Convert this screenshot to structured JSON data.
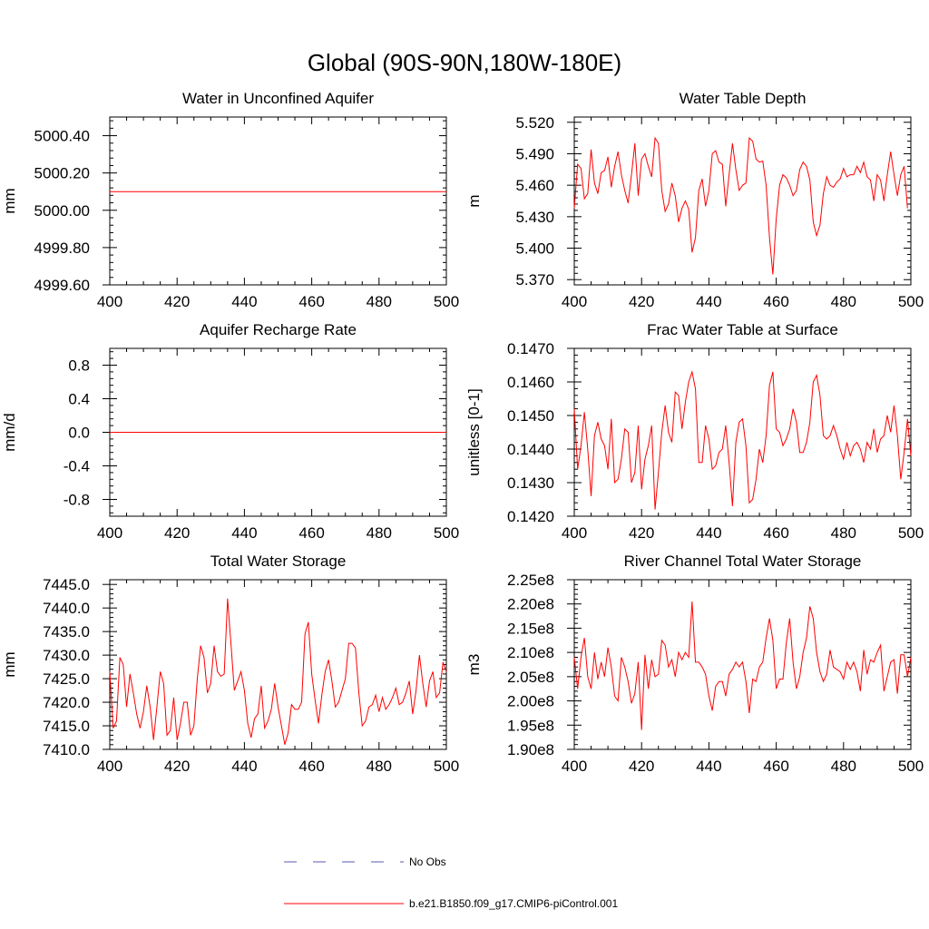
{
  "figure_title": "Global (90S-90N,180W-180E)",
  "legend": [
    {
      "label": "No Obs",
      "color": "#5a5ab0",
      "dash": true
    },
    {
      "label": "b.e21.B1850.f09_g17.CMIP6-piControl.001",
      "color": "#ff0000",
      "dash": false
    }
  ],
  "chart_data": [
    {
      "type": "line",
      "title": "Water in Unconfined Aquifer",
      "xlabel": "",
      "ylabel": "mm",
      "xlim": [
        400,
        500
      ],
      "ylim": [
        4999.6,
        5000.5
      ],
      "xticks": [
        400,
        420,
        440,
        460,
        480,
        500
      ],
      "xtick_labels": [
        "400",
        "420",
        "440",
        "460",
        "480",
        "500"
      ],
      "yticks": [
        4999.6,
        4999.8,
        5000.0,
        5000.2,
        5000.4
      ],
      "ytick_labels": [
        "4999.60",
        "4999.80",
        "5000.00",
        "5000.20",
        "5000.40"
      ],
      "series": [
        {
          "name": "b.e21.B1850.f09_g17.CMIP6-piControl.001",
          "color": "#ff0000",
          "x0": 400,
          "dx": 1,
          "values": [
            5000.1,
            5000.1,
            5000.1,
            5000.1,
            5000.1,
            5000.1,
            5000.1,
            5000.1,
            5000.1,
            5000.1,
            5000.1,
            5000.1,
            5000.1,
            5000.1,
            5000.1,
            5000.1,
            5000.1,
            5000.1,
            5000.1,
            5000.1,
            5000.1,
            5000.1,
            5000.1,
            5000.1,
            5000.1,
            5000.1,
            5000.1,
            5000.1,
            5000.1,
            5000.1,
            5000.1,
            5000.1,
            5000.1,
            5000.1,
            5000.1,
            5000.1,
            5000.1,
            5000.1,
            5000.1,
            5000.1,
            5000.1,
            5000.1,
            5000.1,
            5000.1,
            5000.1,
            5000.1,
            5000.1,
            5000.1,
            5000.1,
            5000.1,
            5000.1,
            5000.1,
            5000.1,
            5000.1,
            5000.1,
            5000.1,
            5000.1,
            5000.1,
            5000.1,
            5000.1,
            5000.1,
            5000.1,
            5000.1,
            5000.1,
            5000.1,
            5000.1,
            5000.1,
            5000.1,
            5000.1,
            5000.1,
            5000.1,
            5000.1,
            5000.1,
            5000.1,
            5000.1,
            5000.1,
            5000.1,
            5000.1,
            5000.1,
            5000.1,
            5000.1,
            5000.1,
            5000.1,
            5000.1,
            5000.1,
            5000.1,
            5000.1,
            5000.1,
            5000.1,
            5000.1,
            5000.1,
            5000.1,
            5000.1,
            5000.1,
            5000.1,
            5000.1,
            5000.1,
            5000.1,
            5000.1,
            5000.1,
            5000.1
          ]
        }
      ]
    },
    {
      "type": "line",
      "title": "Water Table Depth",
      "xlabel": "",
      "ylabel": "m",
      "xlim": [
        400,
        500
      ],
      "ylim": [
        5.365,
        5.525
      ],
      "xticks": [
        400,
        420,
        440,
        460,
        480,
        500
      ],
      "xtick_labels": [
        "400",
        "420",
        "440",
        "460",
        "480",
        "500"
      ],
      "yticks": [
        5.37,
        5.4,
        5.43,
        5.46,
        5.49,
        5.52
      ],
      "ytick_labels": [
        "5.370",
        "5.400",
        "5.430",
        "5.460",
        "5.490",
        "5.520"
      ],
      "series": [
        {
          "name": "b.e21.B1850.f09_g17.CMIP6-piControl.001",
          "color": "#ff0000",
          "x0": 400,
          "dx": 1,
          "values": [
            5.438,
            5.48,
            5.476,
            5.447,
            5.452,
            5.494,
            5.462,
            5.452,
            5.472,
            5.474,
            5.487,
            5.458,
            5.478,
            5.492,
            5.47,
            5.455,
            5.443,
            5.47,
            5.5,
            5.45,
            5.485,
            5.49,
            5.478,
            5.468,
            5.505,
            5.5,
            5.455,
            5.435,
            5.442,
            5.462,
            5.45,
            5.425,
            5.438,
            5.445,
            5.437,
            5.396,
            5.41,
            5.455,
            5.466,
            5.44,
            5.455,
            5.49,
            5.493,
            5.482,
            5.48,
            5.44,
            5.47,
            5.5,
            5.475,
            5.455,
            5.46,
            5.462,
            5.505,
            5.502,
            5.485,
            5.482,
            5.483,
            5.46,
            5.41,
            5.375,
            5.428,
            5.46,
            5.47,
            5.467,
            5.46,
            5.45,
            5.455,
            5.475,
            5.482,
            5.478,
            5.465,
            5.425,
            5.412,
            5.422,
            5.452,
            5.468,
            5.46,
            5.458,
            5.463,
            5.466,
            5.476,
            5.468,
            5.47,
            5.47,
            5.478,
            5.472,
            5.482,
            5.468,
            5.465,
            5.445,
            5.47,
            5.465,
            5.445,
            5.47,
            5.492,
            5.47,
            5.45,
            5.47,
            5.478,
            5.438
          ]
        }
      ]
    },
    {
      "type": "line",
      "title": "Aquifer Recharge Rate",
      "xlabel": "",
      "ylabel": "mm/d",
      "xlim": [
        400,
        500
      ],
      "ylim": [
        -1.0,
        1.0
      ],
      "xticks": [
        400,
        420,
        440,
        460,
        480,
        500
      ],
      "xtick_labels": [
        "400",
        "420",
        "440",
        "460",
        "480",
        "500"
      ],
      "yticks": [
        -0.8,
        -0.4,
        0.0,
        0.4,
        0.8
      ],
      "ytick_labels": [
        "-0.8",
        "-0.4",
        "0.0",
        "0.4",
        "0.8"
      ],
      "series": [
        {
          "name": "b.e21.B1850.f09_g17.CMIP6-piControl.001",
          "color": "#ff0000",
          "x0": 400,
          "dx": 1,
          "values": [
            0.0,
            0.0,
            0.0,
            0.0,
            0.0,
            0.0,
            0.0,
            0.0,
            0.0,
            0.0,
            0.0,
            0.0,
            0.0,
            0.0,
            0.0,
            0.0,
            0.0,
            0.0,
            0.0,
            0.0,
            0.0,
            0.0,
            0.0,
            0.0,
            0.0,
            0.0,
            0.0,
            0.0,
            0.0,
            0.0,
            0.0,
            0.0,
            0.0,
            0.0,
            0.0,
            0.0,
            0.0,
            0.0,
            0.0,
            0.0,
            0.0,
            0.0,
            0.0,
            0.0,
            0.0,
            0.0,
            0.0,
            0.0,
            0.0,
            0.0,
            0.0,
            0.0,
            0.0,
            0.0,
            0.0,
            0.0,
            0.0,
            0.0,
            0.0,
            0.0,
            0.0,
            0.0,
            0.0,
            0.0,
            0.0,
            0.0,
            0.0,
            0.0,
            0.0,
            0.0,
            0.0,
            0.0,
            0.0,
            0.0,
            0.0,
            0.0,
            0.0,
            0.0,
            0.0,
            0.0,
            0.0,
            0.0,
            0.0,
            0.0,
            0.0,
            0.0,
            0.0,
            0.0,
            0.0,
            0.0,
            0.0,
            0.0,
            0.0,
            0.0,
            0.0,
            0.0,
            0.0,
            0.0,
            0.0,
            0.0,
            0.0
          ]
        }
      ]
    },
    {
      "type": "line",
      "title": "Frac Water Table at Surface",
      "xlabel": "",
      "ylabel": "unitless [0-1]",
      "xlim": [
        400,
        500
      ],
      "ylim": [
        0.142,
        0.147
      ],
      "xticks": [
        400,
        420,
        440,
        460,
        480,
        500
      ],
      "xtick_labels": [
        "400",
        "420",
        "440",
        "460",
        "480",
        "500"
      ],
      "yticks": [
        0.142,
        0.143,
        0.144,
        0.145,
        0.146,
        0.147
      ],
      "ytick_labels": [
        "0.1420",
        "0.1430",
        "0.1440",
        "0.1450",
        "0.1460",
        "0.1470"
      ],
      "series": [
        {
          "name": "b.e21.B1850.f09_g17.CMIP6-piControl.001",
          "color": "#ff0000",
          "x0": 400,
          "dx": 1,
          "values": [
            0.1452,
            0.1434,
            0.1441,
            0.1451,
            0.144,
            0.1426,
            0.1444,
            0.1448,
            0.1443,
            0.1441,
            0.1434,
            0.1449,
            0.143,
            0.1431,
            0.1437,
            0.1446,
            0.1445,
            0.143,
            0.1433,
            0.1447,
            0.1428,
            0.1437,
            0.1441,
            0.1447,
            0.1422,
            0.1433,
            0.1445,
            0.1453,
            0.1445,
            0.1442,
            0.1457,
            0.1456,
            0.1446,
            0.1454,
            0.146,
            0.1463,
            0.1458,
            0.1436,
            0.1436,
            0.1447,
            0.1443,
            0.1434,
            0.1435,
            0.1439,
            0.144,
            0.1447,
            0.1436,
            0.1423,
            0.1442,
            0.1448,
            0.1449,
            0.1441,
            0.1424,
            0.1425,
            0.1431,
            0.144,
            0.1436,
            0.1444,
            0.1459,
            0.1463,
            0.1446,
            0.1445,
            0.1441,
            0.1443,
            0.1446,
            0.1452,
            0.1448,
            0.1439,
            0.1439,
            0.1442,
            0.1448,
            0.146,
            0.1462,
            0.1456,
            0.1444,
            0.1443,
            0.1444,
            0.1447,
            0.1444,
            0.144,
            0.1437,
            0.1442,
            0.1438,
            0.1441,
            0.1442,
            0.144,
            0.1436,
            0.1442,
            0.144,
            0.1446,
            0.1439,
            0.1443,
            0.1444,
            0.145,
            0.1445,
            0.1453,
            0.1444,
            0.1431,
            0.1439,
            0.1449,
            0.1438
          ]
        }
      ]
    },
    {
      "type": "line",
      "title": "Total Water Storage",
      "xlabel": "",
      "ylabel": "mm",
      "xlim": [
        400,
        500
      ],
      "ylim": [
        7410.0,
        7446.0
      ],
      "xticks": [
        400,
        420,
        440,
        460,
        480,
        500
      ],
      "xtick_labels": [
        "400",
        "420",
        "440",
        "460",
        "480",
        "500"
      ],
      "yticks": [
        7410.0,
        7415.0,
        7420.0,
        7425.0,
        7430.0,
        7435.0,
        7440.0,
        7445.0
      ],
      "ytick_labels": [
        "7410.0",
        "7415.0",
        "7420.0",
        "7425.0",
        "7430.0",
        "7435.0",
        "7440.0",
        "7445.0"
      ],
      "series": [
        {
          "name": "b.e21.B1850.f09_g17.CMIP6-piControl.001",
          "color": "#ff0000",
          "x0": 400,
          "dx": 1,
          "values": [
            7426.5,
            7414.5,
            7416.0,
            7429.5,
            7428.0,
            7419.0,
            7426.0,
            7422.0,
            7417.5,
            7414.5,
            7418.0,
            7423.5,
            7419.0,
            7412.0,
            7419.0,
            7426.5,
            7424.0,
            7413.0,
            7414.0,
            7421.0,
            7412.0,
            7415.5,
            7420.0,
            7420.0,
            7413.0,
            7415.0,
            7425.0,
            7432.0,
            7429.5,
            7422.0,
            7424.0,
            7432.0,
            7426.5,
            7425.5,
            7426.0,
            7442.0,
            7432.5,
            7422.5,
            7424.5,
            7426.5,
            7422.5,
            7415.5,
            7412.5,
            7416.5,
            7417.5,
            7423.5,
            7414.5,
            7416.0,
            7418.5,
            7424.0,
            7419.0,
            7415.0,
            7411.0,
            7413.5,
            7419.5,
            7418.5,
            7418.5,
            7420.0,
            7434.5,
            7437.0,
            7426.0,
            7420.5,
            7415.5,
            7421.5,
            7426.5,
            7429.0,
            7424.5,
            7419.0,
            7420.0,
            7422.5,
            7425.0,
            7432.5,
            7432.5,
            7431.5,
            7422.0,
            7415.0,
            7416.0,
            7419.0,
            7419.5,
            7421.5,
            7418.0,
            7421.0,
            7418.5,
            7419.5,
            7421.0,
            7423.0,
            7419.5,
            7420.0,
            7422.0,
            7424.5,
            7417.5,
            7422.5,
            7430.0,
            7424.0,
            7419.0,
            7424.5,
            7426.5,
            7421.0,
            7422.0,
            7428.5,
            7426.5
          ]
        }
      ]
    },
    {
      "type": "line",
      "title": "River Channel Total Water Storage",
      "xlabel": "",
      "ylabel": "m3",
      "xlim": [
        400,
        500
      ],
      "ylim": [
        190000000,
        225000000
      ],
      "xticks": [
        400,
        420,
        440,
        460,
        480,
        500
      ],
      "xtick_labels": [
        "400",
        "420",
        "440",
        "460",
        "480",
        "500"
      ],
      "yticks": [
        190000000,
        195000000,
        200000000,
        205000000,
        210000000,
        215000000,
        220000000,
        225000000
      ],
      "ytick_labels": [
        "1.90e8",
        "1.95e8",
        "2.00e8",
        "2.05e8",
        "2.10e8",
        "2.15e8",
        "2.20e8",
        "2.25e8"
      ],
      "series": [
        {
          "name": "b.e21.B1850.f09_g17.CMIP6-piControl.001",
          "color": "#ff0000",
          "x0": 400,
          "dx": 1,
          "values": [
            209000000,
            202500000,
            209000000,
            213000000,
            205000000,
            202500000,
            210000000,
            204500000,
            208000000,
            205000000,
            211000000,
            207000000,
            201000000,
            200000000,
            209000000,
            207000000,
            204000000,
            199500000,
            201500000,
            208000000,
            194000000,
            209500000,
            202500000,
            208500000,
            205000000,
            205500000,
            212500000,
            211500000,
            207000000,
            208500000,
            205000000,
            210000000,
            208500000,
            210000000,
            209000000,
            220500000,
            208000000,
            208000000,
            207000000,
            205500000,
            201000000,
            198000000,
            203000000,
            204000000,
            204000000,
            201000000,
            205500000,
            206500000,
            208000000,
            207000000,
            208000000,
            204000000,
            197500000,
            204500000,
            204000000,
            207000000,
            208000000,
            213000000,
            217000000,
            212500000,
            202500000,
            204500000,
            204500000,
            212000000,
            217000000,
            208000000,
            202500000,
            205000000,
            210000000,
            213000000,
            219500000,
            217000000,
            210000000,
            206000000,
            204000000,
            205500000,
            210500000,
            207000000,
            206500000,
            206000000,
            204500000,
            208000000,
            206500000,
            208000000,
            206000000,
            202000000,
            210500000,
            205500000,
            208500000,
            208000000,
            210000000,
            211500000,
            202000000,
            205000000,
            208000000,
            208500000,
            201500000,
            209500000,
            209500000,
            205000000,
            209000000
          ]
        }
      ]
    }
  ]
}
